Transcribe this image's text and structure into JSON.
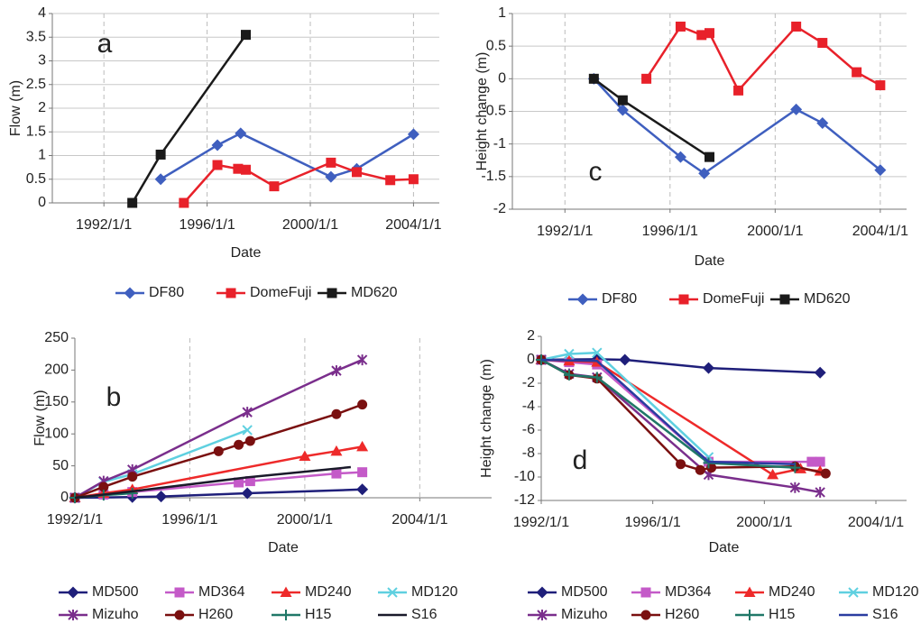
{
  "chart_data": [
    {
      "type": "line",
      "annotation": "a",
      "x_label": "Date",
      "y_label": "Flow (m)",
      "xlim": [
        1990,
        2005
      ],
      "xticks": [
        {
          "value": 1992,
          "label": "1992/1/1"
        },
        {
          "value": 1996,
          "label": "1996/1/1"
        },
        {
          "value": 2000,
          "label": "2000/1/1"
        },
        {
          "value": 2004,
          "label": "2004/1/1"
        }
      ],
      "ylim": [
        0,
        4
      ],
      "yticks": [
        0,
        0.5,
        1,
        1.5,
        2,
        2.5,
        3,
        3.5,
        4
      ],
      "grid": true,
      "xgrid": true,
      "legend": "bottom",
      "series": [
        {
          "name": "DF80",
          "color": "#3f5fbf",
          "marker": "diamond",
          "x": [
            1994.2,
            1996.4,
            1997.3,
            2000.8,
            2001.8,
            2004.0
          ],
          "values": [
            0.5,
            1.22,
            1.47,
            0.55,
            0.72,
            1.45
          ]
        },
        {
          "name": "DomeFuji",
          "color": "#e8212a",
          "marker": "square",
          "x": [
            1995.1,
            1996.4,
            1997.2,
            1997.5,
            1998.6,
            2000.8,
            2001.8,
            2003.1,
            2004.0
          ],
          "values": [
            0,
            0.8,
            0.72,
            0.7,
            0.35,
            0.85,
            0.65,
            0.48,
            0.5
          ]
        },
        {
          "name": "MD620",
          "color": "#1a1a1a",
          "marker": "square",
          "x": [
            1993.1,
            1994.2,
            1997.5
          ],
          "values": [
            0,
            1.02,
            3.55
          ]
        }
      ]
    },
    {
      "type": "line",
      "annotation": "b",
      "x_label": "Date",
      "y_label": "Flow (m)",
      "xlim": [
        1992,
        2006.5
      ],
      "xticks": [
        {
          "value": 1992,
          "label": "1992/1/1"
        },
        {
          "value": 1996,
          "label": "1996/1/1"
        },
        {
          "value": 2000,
          "label": "2000/1/1"
        },
        {
          "value": 2004,
          "label": "2004/1/1"
        }
      ],
      "ylim": [
        0,
        250
      ],
      "yticks": [
        0,
        50,
        100,
        150,
        200,
        250
      ],
      "grid": false,
      "xgrid": true,
      "legend": "bottom",
      "series": [
        {
          "name": "MD500",
          "color": "#1f1f7a",
          "marker": "diamond",
          "x": [
            1992,
            1994,
            1995,
            1998,
            2002
          ],
          "values": [
            0,
            1,
            2,
            7,
            13
          ]
        },
        {
          "name": "MD364",
          "color": "#c45ac8",
          "marker": "square",
          "x": [
            1992,
            1993,
            1994,
            1997.7,
            1998.1,
            2001.1,
            2002
          ],
          "values": [
            0,
            5,
            9,
            24,
            26,
            38,
            40
          ]
        },
        {
          "name": "MD240",
          "color": "#ee2a2a",
          "marker": "triangle",
          "x": [
            1992,
            1993,
            1994,
            2000,
            2001.1,
            2002
          ],
          "values": [
            0,
            7,
            13,
            65,
            73,
            80
          ]
        },
        {
          "name": "MD120",
          "color": "#5fd0e0",
          "marker": "x",
          "x": [
            1992,
            1993,
            1994,
            1998
          ],
          "values": [
            0,
            25,
            37,
            106
          ]
        },
        {
          "name": "Mizuho",
          "color": "#7a2e8c",
          "marker": "star",
          "x": [
            1992,
            1993,
            1994,
            1998,
            2001.1,
            2002
          ],
          "values": [
            0,
            26,
            44,
            134,
            199,
            216
          ]
        },
        {
          "name": "H260",
          "color": "#7a1010",
          "marker": "circle",
          "x": [
            1992,
            1993,
            1994,
            1997,
            1997.7,
            1998.1,
            2001.1,
            2002
          ],
          "values": [
            0,
            17,
            33,
            73,
            83,
            89,
            131,
            146
          ]
        },
        {
          "name": "H15",
          "color": "#207868",
          "marker": "plus",
          "x": [
            1992,
            1993,
            1994
          ],
          "values": [
            0,
            4,
            7
          ]
        },
        {
          "name": "S16",
          "color": "#1a1a2a",
          "marker": "none",
          "x": [
            1992,
            1994,
            1998,
            2001.6
          ],
          "values": [
            0,
            10,
            32,
            48
          ]
        }
      ]
    },
    {
      "type": "line",
      "annotation": "c",
      "x_label": "Date",
      "y_label": "Height change (m)",
      "xlim": [
        1990,
        2005
      ],
      "xticks": [
        {
          "value": 1992,
          "label": "1992/1/1"
        },
        {
          "value": 1996,
          "label": "1996/1/1"
        },
        {
          "value": 2000,
          "label": "2000/1/1"
        },
        {
          "value": 2004,
          "label": "2004/1/1"
        }
      ],
      "ylim": [
        -2,
        1
      ],
      "yticks": [
        -2,
        -1.5,
        -1,
        -0.5,
        0,
        0.5,
        1
      ],
      "grid": true,
      "xgrid": true,
      "legend": "bottom",
      "series": [
        {
          "name": "DF80",
          "color": "#3f5fbf",
          "marker": "diamond",
          "x": [
            1993.1,
            1994.2,
            1996.4,
            1997.3,
            2000.8,
            2001.8,
            2004.0
          ],
          "values": [
            0,
            -0.48,
            -1.2,
            -1.45,
            -0.47,
            -0.68,
            -1.4
          ]
        },
        {
          "name": "DomeFuji",
          "color": "#e8212a",
          "marker": "square",
          "x": [
            1995.1,
            1996.4,
            1997.2,
            1997.5,
            1998.6,
            2000.8,
            2001.8,
            2003.1,
            2004.0
          ],
          "values": [
            0,
            0.8,
            0.67,
            0.7,
            -0.18,
            0.8,
            0.55,
            0.1,
            -0.1
          ]
        },
        {
          "name": "MD620",
          "color": "#1a1a1a",
          "marker": "square",
          "x": [
            1993.1,
            1994.2,
            1997.5
          ],
          "values": [
            0,
            -0.33,
            -1.2
          ]
        }
      ]
    },
    {
      "type": "line",
      "annotation": "d",
      "x_label": "Date",
      "y_label": "Height change (m)",
      "xlim": [
        1992,
        2005.1
      ],
      "xticks": [
        {
          "value": 1992,
          "label": "1992/1/1"
        },
        {
          "value": 1996,
          "label": "1996/1/1"
        },
        {
          "value": 2000,
          "label": "2000/1/1"
        },
        {
          "value": 2004,
          "label": "2004/1/1"
        }
      ],
      "ylim": [
        -12,
        2
      ],
      "yticks": [
        -12,
        -10,
        -8,
        -6,
        -4,
        -2,
        0,
        2
      ],
      "grid": false,
      "xgrid": false,
      "legend": "bottom",
      "series": [
        {
          "name": "MD500",
          "color": "#1f1f7a",
          "marker": "diamond",
          "x": [
            1992,
            1994,
            1995,
            1998,
            2002
          ],
          "values": [
            0,
            0.05,
            0,
            -0.7,
            -1.1
          ]
        },
        {
          "name": "MD364",
          "color": "#c45ac8",
          "marker": "square",
          "x": [
            1992,
            1993,
            1994,
            1998,
            2001.7,
            2002
          ],
          "values": [
            0,
            -0.2,
            -0.4,
            -8.7,
            -8.7,
            -8.7
          ]
        },
        {
          "name": "MD240",
          "color": "#ee2a2a",
          "marker": "triangle",
          "x": [
            1992,
            1993,
            1994,
            2000.3,
            2001.3,
            2002
          ],
          "values": [
            0,
            -0.1,
            -0.2,
            -9.8,
            -9.3,
            -9.5
          ]
        },
        {
          "name": "MD120",
          "color": "#5fd0e0",
          "marker": "x",
          "x": [
            1992,
            1993,
            1994,
            1998
          ],
          "values": [
            0,
            0.5,
            0.6,
            -8.3
          ]
        },
        {
          "name": "Mizuho",
          "color": "#7a2e8c",
          "marker": "star",
          "x": [
            1992,
            1993,
            1994,
            1998,
            2001.1,
            2002
          ],
          "values": [
            0,
            -1.2,
            -1.5,
            -9.8,
            -10.9,
            -11.3
          ]
        },
        {
          "name": "H260",
          "color": "#7a1010",
          "marker": "circle",
          "x": [
            1992,
            1993,
            1994,
            1997,
            1997.7,
            1998.1,
            2001.1,
            2002.2
          ],
          "values": [
            0,
            -1.3,
            -1.6,
            -8.9,
            -9.4,
            -9.2,
            -9.1,
            -9.7
          ]
        },
        {
          "name": "H15",
          "color": "#207868",
          "marker": "plus",
          "x": [
            1992,
            1993,
            1994,
            1998,
            2001.1
          ],
          "values": [
            0,
            -1.3,
            -1.5,
            -8.8,
            -9.2
          ]
        },
        {
          "name": "S16",
          "color": "#2a3ca0",
          "marker": "none",
          "x": [
            1992,
            1994,
            1998,
            2001.1
          ],
          "values": [
            0,
            -0.1,
            -8.7,
            -8.9
          ]
        }
      ]
    }
  ]
}
